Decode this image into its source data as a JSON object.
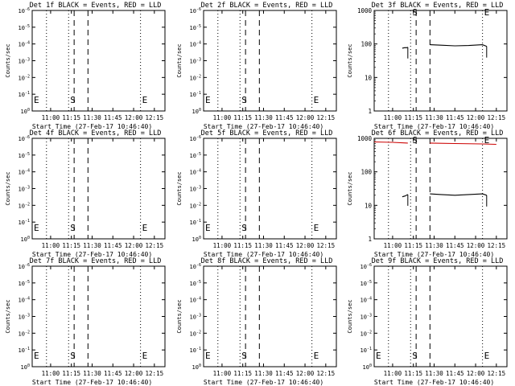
{
  "ylabel": "Counts/sec",
  "xlabel": "Start Time (27-Feb-17 10:46:40)",
  "x_ticks": [
    "11:00",
    "11:15",
    "11:30",
    "11:45",
    "12:00",
    "12:15"
  ],
  "markers": {
    "start": "S",
    "end": "E",
    "begin": "E"
  },
  "colors": {
    "events": "#000000",
    "lld": "#cc0000"
  },
  "chart_data": [
    {
      "type": "line",
      "title": "Det 1f BLACK = Events, RED = LLD",
      "ylog": true,
      "ylim_exp": [
        0,
        6
      ],
      "y_ticks": [
        "10^0",
        "10^-1",
        "10^-2",
        "10^-3",
        "10^-4",
        "10^-5",
        "10^-6"
      ],
      "series": []
    },
    {
      "type": "line",
      "title": "Det 2f BLACK = Events, RED = LLD",
      "ylog": true,
      "ylim_exp": [
        0,
        6
      ],
      "y_ticks": [
        "10^0",
        "10^-1",
        "10^-2",
        "10^-3",
        "10^-4",
        "10^-5",
        "10^-6"
      ],
      "series": []
    },
    {
      "type": "line",
      "title": "Det 3f BLACK = Events, RED = LLD",
      "ylog": true,
      "ylim_exp": [
        0,
        3
      ],
      "y_ticks": [
        "1",
        "10",
        "100",
        "1000"
      ],
      "series": [
        {
          "color": "black",
          "segments": [
            {
              "x": [
                "11:07",
                "11:09",
                "11:10",
                "11:11"
              ],
              "y": [
                75,
                78,
                77,
                80
              ]
            },
            {
              "x": [
                "11:27",
                "11:35",
                "11:45",
                "11:55",
                "12:05",
                "12:08"
              ],
              "y": [
                95,
                92,
                88,
                90,
                95,
                85
              ]
            }
          ]
        }
      ]
    },
    {
      "type": "line",
      "title": "Det 4f BLACK = Events, RED = LLD",
      "ylog": true,
      "ylim_exp": [
        0,
        6
      ],
      "y_ticks": [
        "10^0",
        "10^-1",
        "10^-2",
        "10^-3",
        "10^-4",
        "10^-5",
        "10^-6"
      ],
      "series": []
    },
    {
      "type": "line",
      "title": "Det 5f BLACK = Events, RED = LLD",
      "ylog": true,
      "ylim_exp": [
        0,
        6
      ],
      "y_ticks": [
        "10^0",
        "10^-1",
        "10^-2",
        "10^-3",
        "10^-4",
        "10^-5",
        "10^-6"
      ],
      "series": []
    },
    {
      "type": "line",
      "title": "Det 6f BLACK = Events, RED = LLD",
      "ylog": true,
      "ylim_exp": [
        0,
        3
      ],
      "y_ticks": [
        "1",
        "10",
        "100",
        "1000"
      ],
      "series": [
        {
          "color": "black",
          "segments": [
            {
              "x": [
                "11:07",
                "11:09",
                "11:10",
                "11:11"
              ],
              "y": [
                18,
                19,
                20,
                21
              ]
            },
            {
              "x": [
                "11:27",
                "11:35",
                "11:45",
                "11:55",
                "12:05",
                "12:08"
              ],
              "y": [
                22,
                21,
                20,
                21,
                22,
                20
              ]
            }
          ]
        },
        {
          "color": "red",
          "segments": [
            {
              "x": [
                "10:46",
                "11:00",
                "11:11"
              ],
              "y": [
                780,
                760,
                720
              ]
            },
            {
              "x": [
                "11:27",
                "11:45",
                "12:05",
                "12:15"
              ],
              "y": [
                720,
                700,
                680,
                660
              ]
            }
          ]
        }
      ]
    },
    {
      "type": "line",
      "title": "Det 7f BLACK = Events, RED = LLD",
      "ylog": true,
      "ylim_exp": [
        0,
        6
      ],
      "y_ticks": [
        "10^0",
        "10^-1",
        "10^-2",
        "10^-3",
        "10^-4",
        "10^-5",
        "10^-6"
      ],
      "series": []
    },
    {
      "type": "line",
      "title": "Det 8f BLACK = Events, RED = LLD",
      "ylog": true,
      "ylim_exp": [
        0,
        6
      ],
      "y_ticks": [
        "10^0",
        "10^-1",
        "10^-2",
        "10^-3",
        "10^-4",
        "10^-5",
        "10^-6"
      ],
      "series": []
    },
    {
      "type": "line",
      "title": "Det 9f BLACK = Events, RED = LLD",
      "ylog": true,
      "ylim_exp": [
        0,
        6
      ],
      "y_ticks": [
        "10^0",
        "10^-1",
        "10^-2",
        "10^-3",
        "10^-4",
        "10^-5",
        "10^-6"
      ],
      "series": []
    }
  ]
}
